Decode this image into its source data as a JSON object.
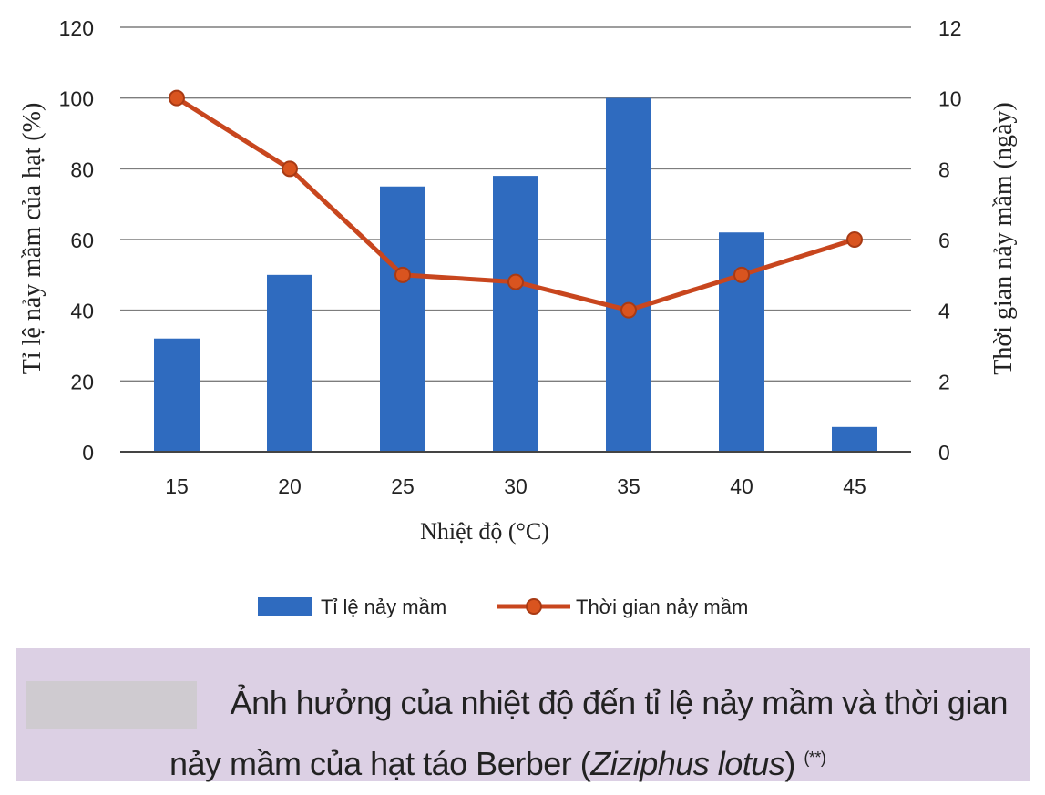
{
  "chart_data": {
    "type": "bar+line",
    "categories": [
      "15",
      "20",
      "25",
      "30",
      "35",
      "40",
      "45"
    ],
    "xlabel": "Nhiệt độ (°C)",
    "ylabel_left": "Tỉ lệ nảy mầm của hạt (%)",
    "ylabel_right": "Thời gian nảy mầm (ngày)",
    "ylim_left": [
      0,
      120
    ],
    "yticks_left": [
      0,
      20,
      40,
      60,
      80,
      100,
      120
    ],
    "ylim_right": [
      0,
      12
    ],
    "yticks_right": [
      0,
      2,
      4,
      6,
      8,
      10,
      12
    ],
    "grid": true,
    "legend_position": "bottom",
    "series": [
      {
        "name": "Tỉ lệ nảy mầm",
        "type": "bar",
        "axis": "left",
        "values": [
          32,
          50,
          75,
          78,
          100,
          62,
          7
        ],
        "color": "#2f6bbf"
      },
      {
        "name": "Thời gian nảy mầm",
        "type": "line",
        "axis": "right",
        "values": [
          10,
          8,
          5,
          4.8,
          4,
          5,
          6
        ],
        "color": "#c8461e"
      }
    ]
  },
  "caption": {
    "line1": "Ảnh hưởng của nhiệt độ đến tỉ lệ nảy mầm và thời gian",
    "line2_before": "nảy mầm của hạt táo Berber (",
    "line2_italic": "Ziziphus lotus",
    "line2_after": ")",
    "note": "(**)"
  }
}
